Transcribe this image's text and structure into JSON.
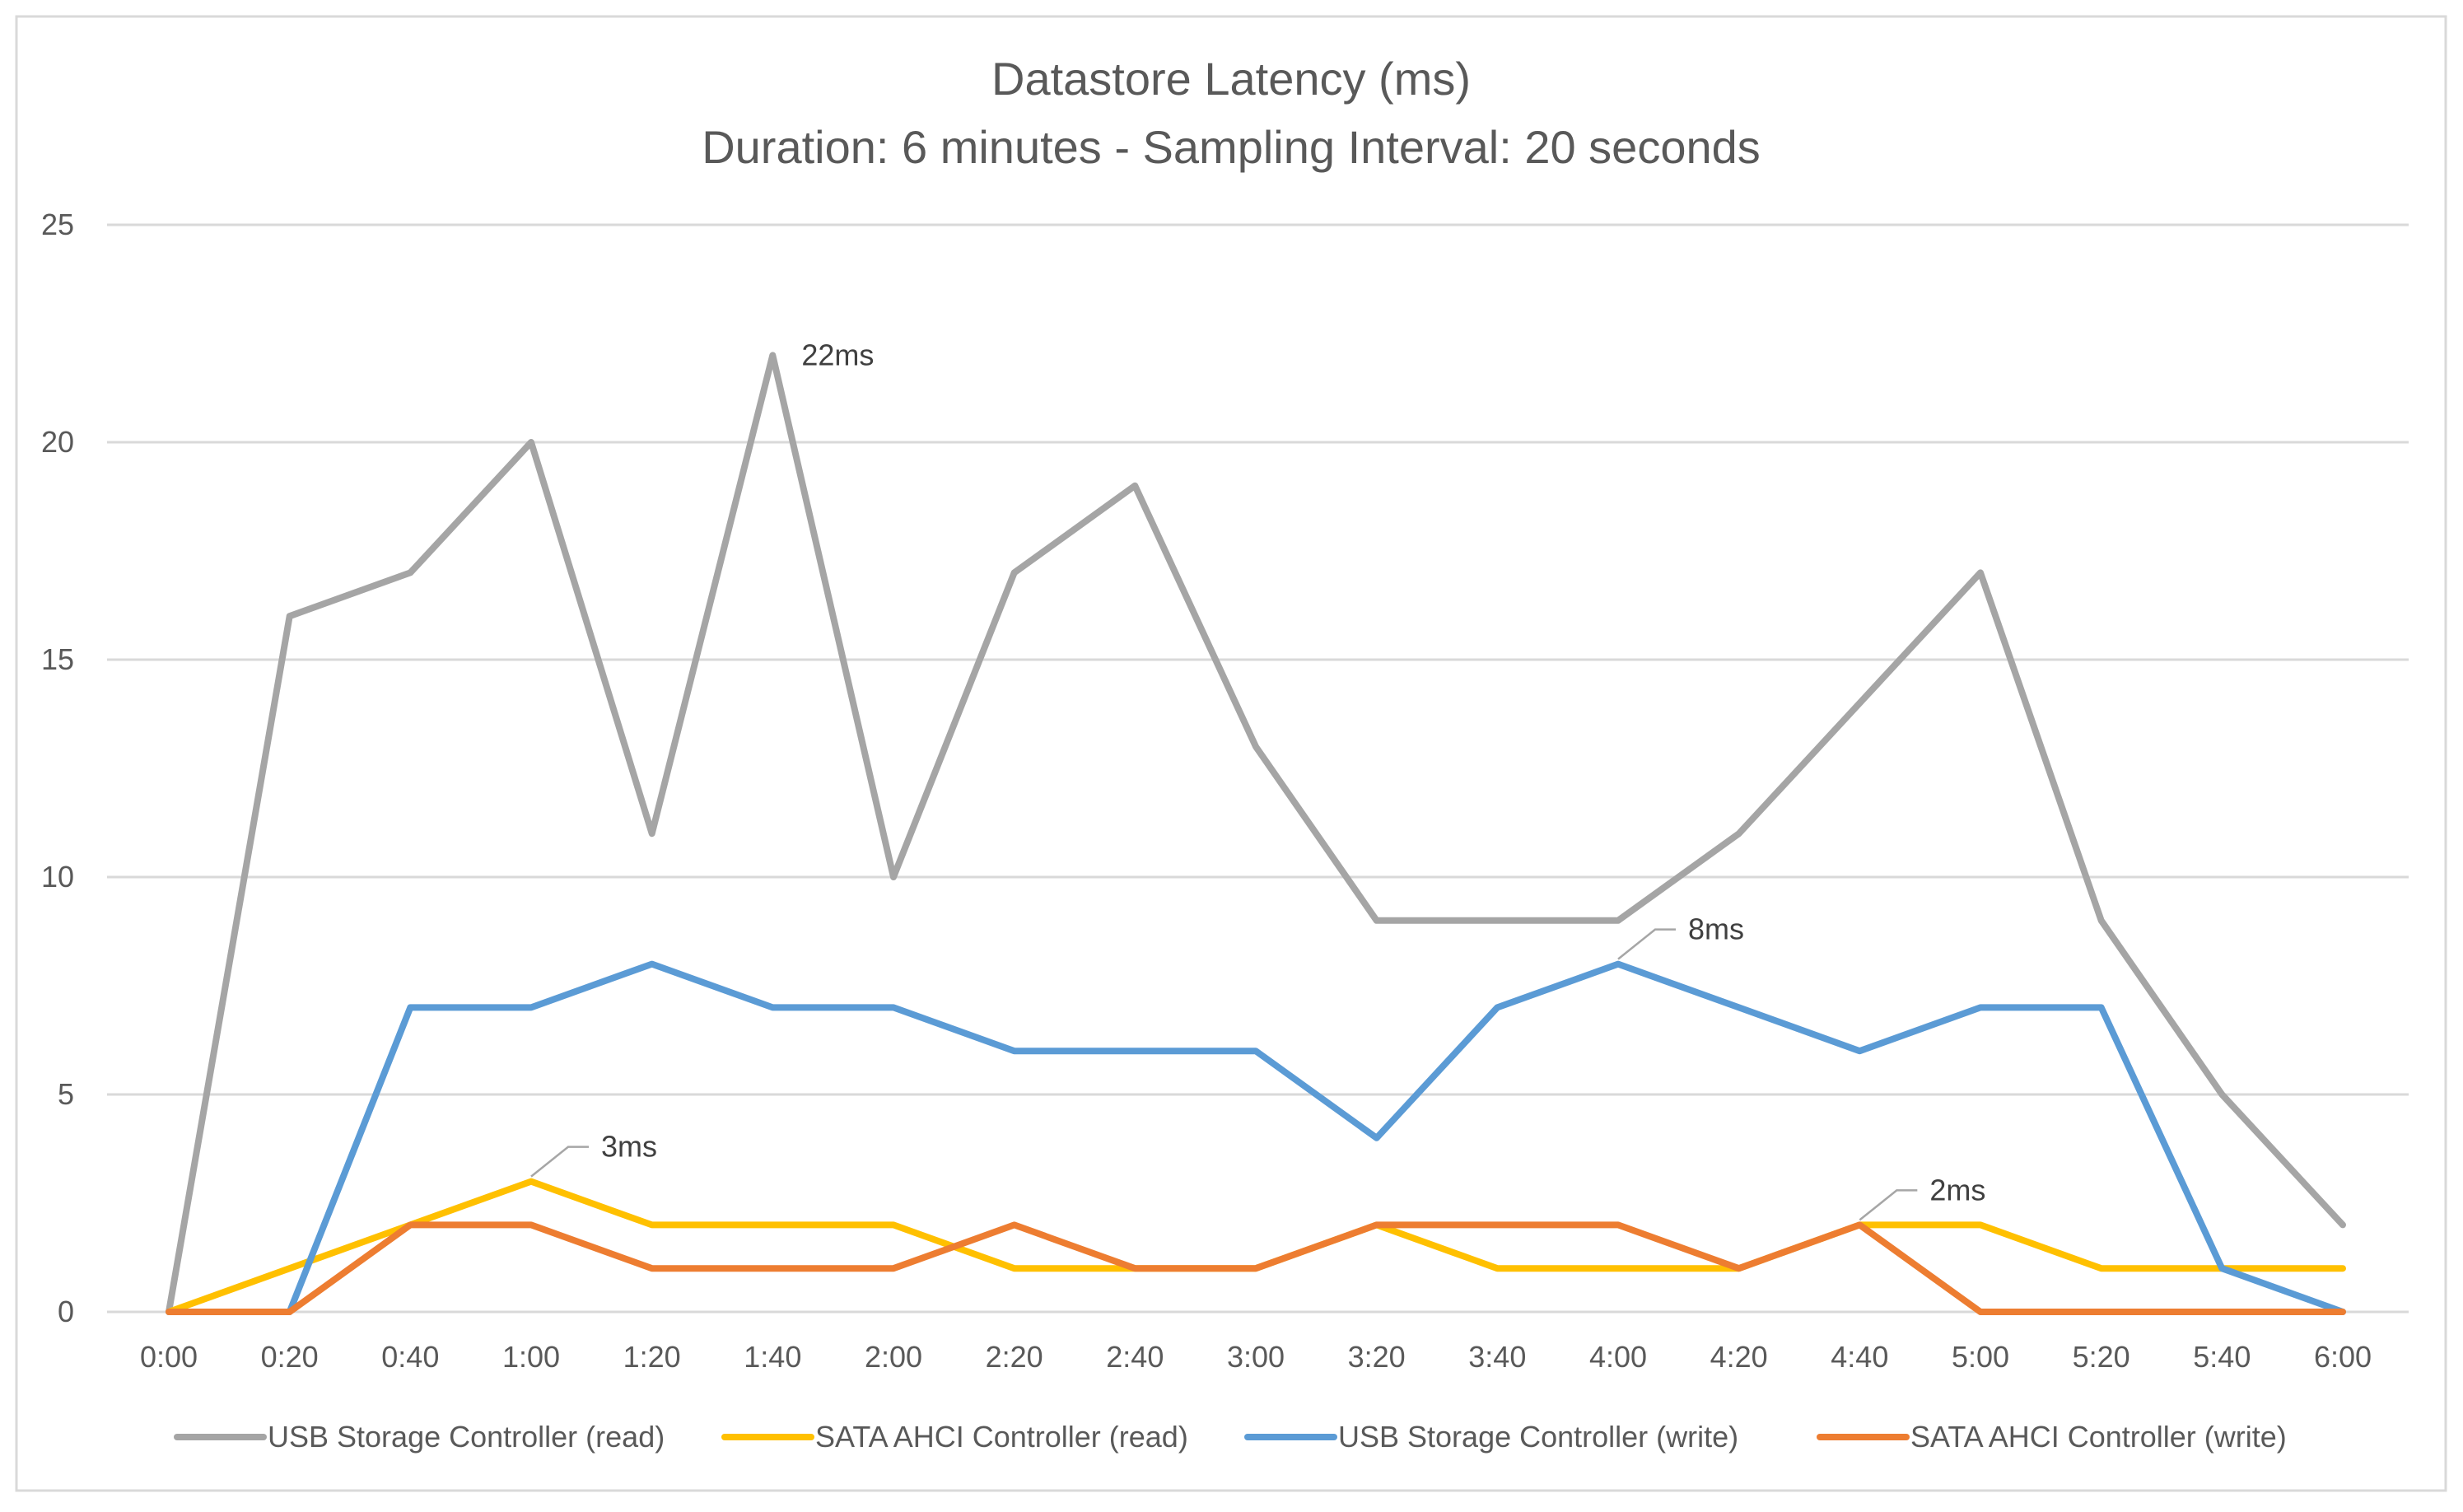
{
  "chart_data": {
    "type": "line",
    "title": "Datastore Latency (ms)",
    "subtitle": "Duration: 6 minutes - Sampling Interval: 20 seconds",
    "xlabel": "",
    "ylabel": "",
    "ylim": [
      0,
      25
    ],
    "yticks": [
      "0",
      "5",
      "10",
      "15",
      "20",
      "25"
    ],
    "grid": true,
    "legend_position": "bottom",
    "categories": [
      "0:00",
      "0:20",
      "0:40",
      "1:00",
      "1:20",
      "1:40",
      "2:00",
      "2:20",
      "2:40",
      "3:00",
      "3:20",
      "3:40",
      "4:00",
      "4:20",
      "4:40",
      "5:00",
      "5:20",
      "5:40",
      "6:00"
    ],
    "series": [
      {
        "name": "USB Storage Controller (read)",
        "color": "#a5a5a5",
        "values": [
          0,
          16,
          17,
          20,
          11,
          22,
          10,
          17,
          19,
          13,
          9,
          9,
          9,
          11,
          14,
          17,
          9,
          5,
          2
        ]
      },
      {
        "name": "SATA AHCI Controller (read)",
        "color": "#ffc000",
        "values": [
          0,
          1,
          2,
          3,
          2,
          2,
          2,
          1,
          1,
          1,
          2,
          1,
          1,
          1,
          2,
          2,
          1,
          1,
          1
        ]
      },
      {
        "name": "USB Storage Controller (write)",
        "color": "#5b9bd5",
        "values": [
          0,
          0,
          7,
          7,
          8,
          7,
          7,
          6,
          6,
          6,
          4,
          7,
          8,
          7,
          6,
          7,
          7,
          1,
          0
        ]
      },
      {
        "name": "SATA AHCI Controller (write)",
        "color": "#ed7d31",
        "values": [
          0,
          0,
          2,
          2,
          1,
          1,
          1,
          2,
          1,
          1,
          2,
          2,
          2,
          1,
          2,
          0,
          0,
          0,
          0
        ]
      }
    ],
    "annotations": [
      {
        "text": "22ms",
        "series": 0,
        "index": 5,
        "leader": false
      },
      {
        "text": "8ms",
        "series": 2,
        "index": 12,
        "leader": true
      },
      {
        "text": "3ms",
        "series": 1,
        "index": 3,
        "leader": true
      },
      {
        "text": "2ms",
        "series": 3,
        "index": 14,
        "leader": true
      }
    ]
  }
}
